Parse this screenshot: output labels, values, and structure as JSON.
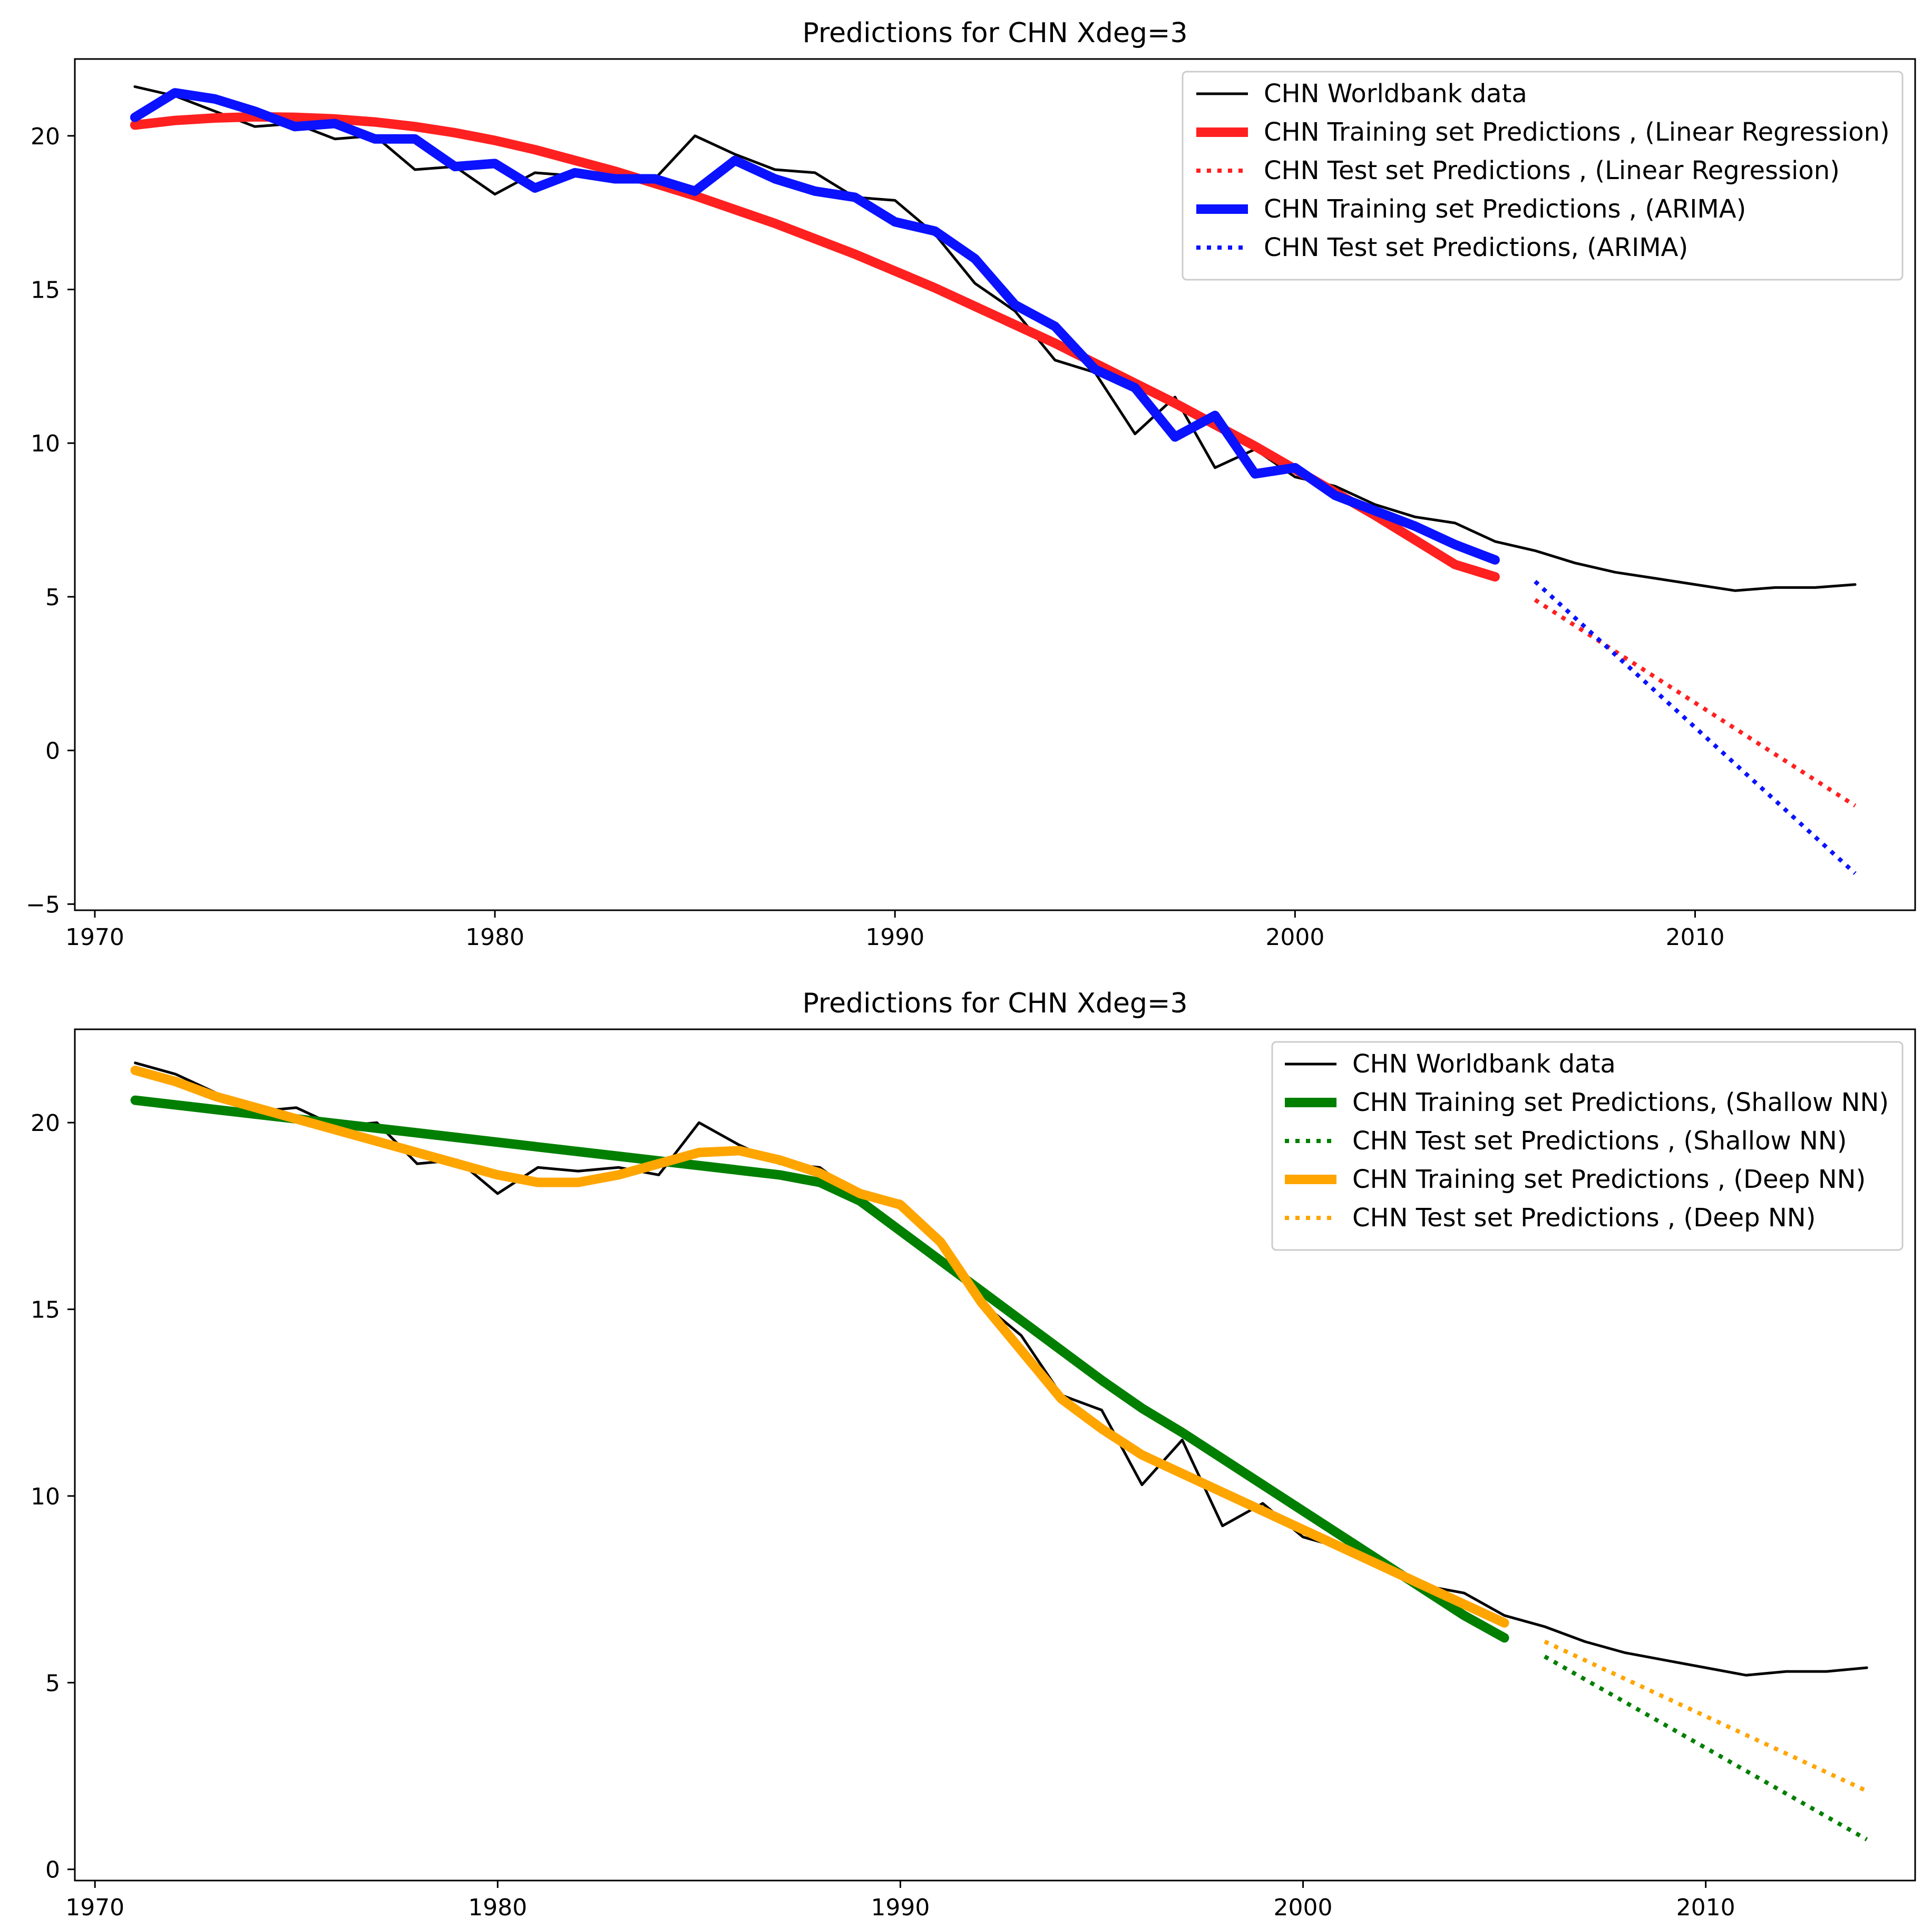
{
  "chart_data": [
    {
      "type": "line",
      "title": "Predictions for CHN  Xdeg=3",
      "xlabel": "",
      "ylabel": "",
      "xlim": [
        1969.5,
        2015.5
      ],
      "ylim": [
        -5.2,
        22.5
      ],
      "xticks": [
        1970,
        1980,
        1990,
        2000,
        2010
      ],
      "yticks": [
        -5,
        0,
        5,
        10,
        15,
        20
      ],
      "ytick_labels": [
        "−5",
        "0",
        "5",
        "10",
        "15",
        "20"
      ],
      "legend_position": "top-right",
      "series": [
        {
          "name": "CHN Worldbank data",
          "color": "#000000",
          "style": "solid",
          "weight": "thin",
          "x": [
            1971,
            1972,
            1973,
            1974,
            1975,
            1976,
            1977,
            1978,
            1979,
            1980,
            1981,
            1982,
            1983,
            1984,
            1985,
            1986,
            1987,
            1988,
            1989,
            1990,
            1991,
            1992,
            1993,
            1994,
            1995,
            1996,
            1997,
            1998,
            1999,
            2000,
            2001,
            2002,
            2003,
            2004,
            2005,
            2006,
            2007,
            2008,
            2009,
            2010,
            2011,
            2012,
            2013,
            2014
          ],
          "y": [
            21.6,
            21.3,
            20.8,
            20.3,
            20.4,
            19.9,
            20.0,
            18.9,
            19.0,
            18.1,
            18.8,
            18.7,
            18.8,
            18.6,
            20.0,
            19.4,
            18.9,
            18.8,
            18.0,
            17.9,
            16.8,
            15.2,
            14.3,
            12.7,
            12.3,
            10.3,
            11.5,
            9.2,
            9.8,
            8.9,
            8.6,
            8.0,
            7.6,
            7.4,
            6.8,
            6.5,
            6.1,
            5.8,
            5.6,
            5.4,
            5.2,
            5.3,
            5.3,
            5.4
          ]
        },
        {
          "name": "CHN Training set Predictions , (Linear Regression)",
          "color": "#ff2020",
          "style": "solid",
          "weight": "thick",
          "x": [
            1971,
            1972,
            1973,
            1974,
            1975,
            1976,
            1977,
            1978,
            1979,
            1980,
            1981,
            1982,
            1983,
            1984,
            1985,
            1986,
            1987,
            1988,
            1989,
            1990,
            1991,
            1992,
            1993,
            1994,
            1995,
            1996,
            1997,
            1998,
            1999,
            2000,
            2001,
            2002,
            2003,
            2004,
            2005
          ],
          "y": [
            20.35,
            20.5,
            20.58,
            20.62,
            20.6,
            20.55,
            20.45,
            20.3,
            20.1,
            19.85,
            19.55,
            19.2,
            18.85,
            18.45,
            18.05,
            17.6,
            17.15,
            16.65,
            16.15,
            15.6,
            15.05,
            14.45,
            13.85,
            13.25,
            12.6,
            11.95,
            11.3,
            10.6,
            9.9,
            9.15,
            8.4,
            7.65,
            6.85,
            6.05,
            5.65
          ]
        },
        {
          "name": "CHN Test set Predictions , (Linear Regression)",
          "color": "#ff2020",
          "style": "dotted",
          "weight": "medium",
          "x": [
            2006,
            2014
          ],
          "y": [
            4.9,
            -1.8
          ]
        },
        {
          "name": "CHN Training set Predictions , (ARIMA)",
          "color": "#0a12ff",
          "style": "solid",
          "weight": "thick",
          "x": [
            1971,
            1972,
            1973,
            1974,
            1975,
            1976,
            1977,
            1978,
            1979,
            1980,
            1981,
            1982,
            1983,
            1984,
            1985,
            1986,
            1987,
            1988,
            1989,
            1990,
            1991,
            1992,
            1993,
            1994,
            1995,
            1996,
            1997,
            1998,
            1999,
            2000,
            2001,
            2002,
            2003,
            2004,
            2005
          ],
          "y": [
            20.6,
            21.4,
            21.2,
            20.8,
            20.3,
            20.4,
            19.9,
            19.9,
            19.0,
            19.1,
            18.3,
            18.8,
            18.6,
            18.6,
            18.2,
            19.2,
            18.6,
            18.2,
            18.0,
            17.2,
            16.9,
            16.0,
            14.5,
            13.8,
            12.4,
            11.8,
            10.2,
            10.9,
            9.0,
            9.2,
            8.3,
            7.8,
            7.3,
            6.7,
            6.2
          ]
        },
        {
          "name": "CHN Test set Predictions, (ARIMA)",
          "color": "#0a12ff",
          "style": "dotted",
          "weight": "medium",
          "x": [
            2006,
            2014
          ],
          "y": [
            5.5,
            -4.0
          ]
        }
      ]
    },
    {
      "type": "line",
      "title": "Predictions for CHN  Xdeg=3",
      "xlabel": "",
      "ylabel": "",
      "xlim": [
        1969.5,
        2015.2
      ],
      "ylim": [
        -0.3,
        22.5
      ],
      "xticks": [
        1970,
        1980,
        1990,
        2000,
        2010
      ],
      "yticks": [
        0,
        5,
        10,
        15,
        20
      ],
      "ytick_labels": [
        "0",
        "5",
        "10",
        "15",
        "20"
      ],
      "legend_position": "top-right",
      "series": [
        {
          "name": "CHN Worldbank data",
          "color": "#000000",
          "style": "solid",
          "weight": "thin",
          "x": [
            1971,
            1972,
            1973,
            1974,
            1975,
            1976,
            1977,
            1978,
            1979,
            1980,
            1981,
            1982,
            1983,
            1984,
            1985,
            1986,
            1987,
            1988,
            1989,
            1990,
            1991,
            1992,
            1993,
            1994,
            1995,
            1996,
            1997,
            1998,
            1999,
            2000,
            2001,
            2002,
            2003,
            2004,
            2005,
            2006,
            2007,
            2008,
            2009,
            2010,
            2011,
            2012,
            2013,
            2014
          ],
          "y": [
            21.6,
            21.3,
            20.8,
            20.3,
            20.4,
            19.9,
            20.0,
            18.9,
            19.0,
            18.1,
            18.8,
            18.7,
            18.8,
            18.6,
            20.0,
            19.4,
            18.9,
            18.8,
            18.0,
            17.9,
            16.8,
            15.2,
            14.3,
            12.7,
            12.3,
            10.3,
            11.5,
            9.2,
            9.8,
            8.9,
            8.6,
            8.0,
            7.6,
            7.4,
            6.8,
            6.5,
            6.1,
            5.8,
            5.6,
            5.4,
            5.2,
            5.3,
            5.3,
            5.4
          ]
        },
        {
          "name": "CHN Training set Predictions, (Shallow NN)",
          "color": "#007f00",
          "style": "solid",
          "weight": "thick",
          "x": [
            1971,
            1973,
            1975,
            1977,
            1979,
            1981,
            1983,
            1985,
            1987,
            1988,
            1989,
            1990,
            1991,
            1992,
            1993,
            1994,
            1995,
            1996,
            1997,
            1998,
            1999,
            2000,
            2001,
            2002,
            2003,
            2004,
            2005
          ],
          "y": [
            20.6,
            20.35,
            20.1,
            19.85,
            19.6,
            19.35,
            19.1,
            18.85,
            18.6,
            18.4,
            17.9,
            17.1,
            16.3,
            15.5,
            14.7,
            13.9,
            13.1,
            12.35,
            11.7,
            11.0,
            10.3,
            9.6,
            8.9,
            8.2,
            7.5,
            6.8,
            6.2
          ]
        },
        {
          "name": "CHN Test set Predictions , (Shallow NN)",
          "color": "#007f00",
          "style": "dotted",
          "weight": "medium",
          "x": [
            2006,
            2014
          ],
          "y": [
            5.7,
            0.8
          ]
        },
        {
          "name": "CHN Training set Predictions , (Deep NN)",
          "color": "#ffa500",
          "style": "solid",
          "weight": "thick",
          "x": [
            1971,
            1972,
            1973,
            1974,
            1975,
            1976,
            1977,
            1978,
            1979,
            1980,
            1981,
            1982,
            1983,
            1984,
            1985,
            1986,
            1987,
            1988,
            1989,
            1990,
            1991,
            1992,
            1993,
            1994,
            1995,
            1996,
            1997,
            1998,
            1999,
            2000,
            2001,
            2002,
            2003,
            2004,
            2005
          ],
          "y": [
            21.4,
            21.1,
            20.7,
            20.4,
            20.1,
            19.8,
            19.5,
            19.2,
            18.9,
            18.6,
            18.4,
            18.4,
            18.6,
            18.9,
            19.2,
            19.25,
            19.0,
            18.65,
            18.1,
            17.8,
            16.8,
            15.2,
            13.9,
            12.6,
            11.8,
            11.1,
            10.6,
            10.1,
            9.6,
            9.1,
            8.6,
            8.1,
            7.6,
            7.1,
            6.6
          ]
        },
        {
          "name": "CHN Test set Predictions , (Deep NN)",
          "color": "#ffa500",
          "style": "dotted",
          "weight": "medium",
          "x": [
            2006,
            2014
          ],
          "y": [
            6.1,
            2.1
          ]
        }
      ]
    }
  ]
}
